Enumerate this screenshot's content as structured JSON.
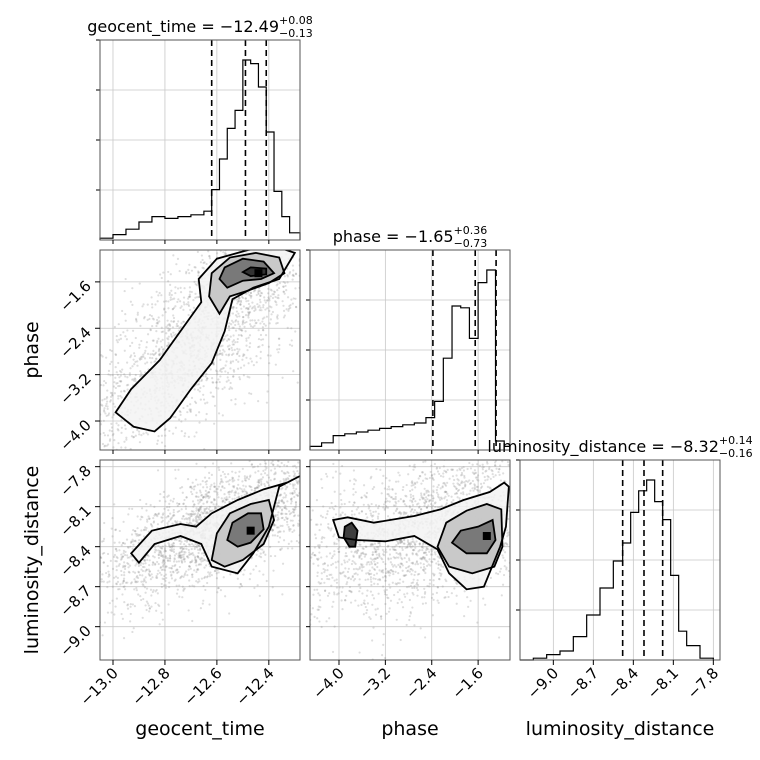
{
  "chart_data": {
    "type": "corner",
    "parameters": [
      {
        "name": "geocent_time",
        "xlabel": "geocent_time",
        "xlim": [
          -13.05,
          -12.28
        ],
        "xticks": [
          -13.0,
          -12.8,
          -12.6,
          -12.4
        ],
        "xtick_labels": [
          "−13.0",
          "−12.8",
          "−12.6",
          "−12.4"
        ]
      },
      {
        "name": "phase",
        "xlabel": "phase",
        "ylabel": "phase",
        "xlim": [
          -4.5,
          -1.05
        ],
        "xticks": [
          -4.0,
          -3.2,
          -2.4,
          -1.6
        ],
        "xtick_labels": [
          "−4.0",
          "−3.2",
          "−2.4",
          "−1.6"
        ]
      },
      {
        "name": "luminosity_distance",
        "xlabel": "luminosity_distance",
        "ylabel": "luminosity_distance",
        "xlim": [
          -9.25,
          -7.75
        ],
        "xticks": [
          -9.0,
          -8.7,
          -8.4,
          -8.1,
          -7.8
        ],
        "xtick_labels": [
          "−9.0",
          "−8.7",
          "−8.4",
          "−8.1",
          "−7.8"
        ]
      }
    ],
    "titles": [
      {
        "prefix": "geocent_time = −12.49",
        "sup": "+0.08",
        "sub": "−0.13"
      },
      {
        "prefix": "phase = −1.65",
        "sup": "+0.36",
        "sub": "−0.73"
      },
      {
        "prefix": "luminosity_distance = −8.32",
        "sup": "+0.14",
        "sub": "−0.16"
      }
    ],
    "quantiles": [
      [
        -12.62,
        -12.49,
        -12.41
      ],
      [
        -2.38,
        -1.65,
        -1.29
      ],
      [
        -8.48,
        -8.32,
        -8.18
      ]
    ],
    "histograms": [
      {
        "edges": [
          -13.05,
          -13.0,
          -12.95,
          -12.9,
          -12.85,
          -12.8,
          -12.75,
          -12.7,
          -12.65,
          -12.62,
          -12.59,
          -12.56,
          -12.53,
          -12.5,
          -12.47,
          -12.44,
          -12.41,
          -12.38,
          -12.35,
          -12.32,
          -12.28
        ],
        "counts": [
          0.01,
          0.03,
          0.06,
          0.1,
          0.13,
          0.12,
          0.13,
          0.14,
          0.16,
          0.28,
          0.45,
          0.62,
          0.72,
          1.0,
          0.98,
          0.85,
          0.6,
          0.27,
          0.13,
          0.04
        ]
      },
      {
        "edges": [
          -4.5,
          -4.3,
          -4.1,
          -3.9,
          -3.7,
          -3.5,
          -3.3,
          -3.1,
          -2.9,
          -2.7,
          -2.5,
          -2.35,
          -2.2,
          -2.05,
          -1.9,
          -1.75,
          -1.6,
          -1.45,
          -1.3,
          -1.15,
          -1.05
        ],
        "counts": [
          0.02,
          0.04,
          0.08,
          0.09,
          0.1,
          0.11,
          0.12,
          0.13,
          0.14,
          0.15,
          0.18,
          0.27,
          0.51,
          0.8,
          0.79,
          0.62,
          0.93,
          1.0,
          0.05,
          0.02
        ]
      },
      {
        "edges": [
          -9.25,
          -9.15,
          -9.05,
          -8.95,
          -8.85,
          -8.75,
          -8.65,
          -8.55,
          -8.48,
          -8.42,
          -8.36,
          -8.3,
          -8.24,
          -8.18,
          -8.12,
          -8.06,
          -8.0,
          -7.9,
          -7.8
        ],
        "counts": [
          0.0,
          0.01,
          0.03,
          0.05,
          0.13,
          0.25,
          0.4,
          0.55,
          0.65,
          0.82,
          0.94,
          1.0,
          0.88,
          0.78,
          0.47,
          0.16,
          0.08,
          0.01
        ]
      }
    ],
    "pairs": [
      {
        "x": 0,
        "y": 1,
        "corr": 0.8,
        "peak": [
          -12.44,
          -1.45
        ],
        "contours": [
          [
            [
              -12.84,
              -4.18
            ],
            [
              -12.78,
              -3.95
            ],
            [
              -12.7,
              -3.45
            ],
            [
              -12.62,
              -3.0
            ],
            [
              -12.57,
              -2.45
            ],
            [
              -12.54,
              -1.9
            ],
            [
              -12.46,
              -1.7
            ],
            [
              -12.36,
              -1.55
            ],
            [
              -12.3,
              -1.1
            ],
            [
              -12.38,
              -0.98
            ],
            [
              -12.48,
              -1.05
            ],
            [
              -12.6,
              -1.2
            ],
            [
              -12.67,
              -1.55
            ],
            [
              -12.66,
              -1.95
            ],
            [
              -12.74,
              -2.45
            ],
            [
              -12.82,
              -2.95
            ],
            [
              -12.93,
              -3.45
            ],
            [
              -12.99,
              -3.85
            ],
            [
              -12.92,
              -4.1
            ]
          ],
          [
            [
              -12.59,
              -2.15
            ],
            [
              -12.55,
              -1.85
            ],
            [
              -12.48,
              -1.75
            ],
            [
              -12.4,
              -1.62
            ],
            [
              -12.34,
              -1.45
            ],
            [
              -12.36,
              -1.18
            ],
            [
              -12.45,
              -1.1
            ],
            [
              -12.55,
              -1.18
            ],
            [
              -12.62,
              -1.45
            ],
            [
              -12.63,
              -1.85
            ]
          ],
          [
            [
              -12.56,
              -1.7
            ],
            [
              -12.5,
              -1.58
            ],
            [
              -12.43,
              -1.55
            ],
            [
              -12.38,
              -1.45
            ],
            [
              -12.42,
              -1.25
            ],
            [
              -12.5,
              -1.2
            ],
            [
              -12.57,
              -1.35
            ],
            [
              -12.59,
              -1.55
            ]
          ],
          [
            [
              -12.47,
              -1.5
            ],
            [
              -12.41,
              -1.47
            ],
            [
              -12.41,
              -1.37
            ],
            [
              -12.47,
              -1.35
            ],
            [
              -12.5,
              -1.43
            ]
          ]
        ]
      },
      {
        "x": 0,
        "y": 2,
        "corr": 0.7,
        "peak": [
          -12.47,
          -8.28
        ],
        "contours": [
          [
            [
              -12.93,
              -8.45
            ],
            [
              -12.85,
              -8.28
            ],
            [
              -12.74,
              -8.23
            ],
            [
              -12.68,
              -8.25
            ],
            [
              -12.62,
              -8.15
            ],
            [
              -12.52,
              -8.05
            ],
            [
              -12.42,
              -7.97
            ],
            [
              -12.33,
              -7.92
            ],
            [
              -12.28,
              -7.87
            ],
            [
              -12.36,
              -7.95
            ],
            [
              -12.4,
              -8.25
            ],
            [
              -12.46,
              -8.45
            ],
            [
              -12.52,
              -8.6
            ],
            [
              -12.62,
              -8.55
            ],
            [
              -12.66,
              -8.38
            ],
            [
              -12.74,
              -8.32
            ],
            [
              -12.84,
              -8.38
            ],
            [
              -12.9,
              -8.52
            ]
          ],
          [
            [
              -12.62,
              -8.5
            ],
            [
              -12.6,
              -8.3
            ],
            [
              -12.55,
              -8.15
            ],
            [
              -12.47,
              -8.08
            ],
            [
              -12.4,
              -8.05
            ],
            [
              -12.38,
              -8.2
            ],
            [
              -12.42,
              -8.38
            ],
            [
              -12.5,
              -8.5
            ],
            [
              -12.57,
              -8.55
            ]
          ],
          [
            [
              -12.56,
              -8.35
            ],
            [
              -12.54,
              -8.22
            ],
            [
              -12.48,
              -8.15
            ],
            [
              -12.43,
              -8.15
            ],
            [
              -12.42,
              -8.27
            ],
            [
              -12.47,
              -8.37
            ],
            [
              -12.52,
              -8.4
            ]
          ]
        ]
      },
      {
        "x": 1,
        "y": 2,
        "corr": 0.45,
        "peak": [
          -1.45,
          -8.32
        ],
        "contours": [
          [
            [
              -4.1,
              -8.2
            ],
            [
              -3.85,
              -8.18
            ],
            [
              -3.4,
              -8.22
            ],
            [
              -2.7,
              -8.17
            ],
            [
              -2.25,
              -8.12
            ],
            [
              -1.85,
              -8.05
            ],
            [
              -1.4,
              -7.99
            ],
            [
              -1.15,
              -7.92
            ],
            [
              -1.07,
              -7.95
            ],
            [
              -1.12,
              -8.25
            ],
            [
              -1.22,
              -8.4
            ],
            [
              -1.5,
              -8.7
            ],
            [
              -1.8,
              -8.72
            ],
            [
              -2.1,
              -8.6
            ],
            [
              -2.3,
              -8.42
            ],
            [
              -2.7,
              -8.32
            ],
            [
              -3.2,
              -8.36
            ],
            [
              -3.7,
              -8.35
            ],
            [
              -4.0,
              -8.33
            ]
          ],
          [
            [
              -2.3,
              -8.4
            ],
            [
              -2.15,
              -8.22
            ],
            [
              -1.8,
              -8.13
            ],
            [
              -1.45,
              -8.08
            ],
            [
              -1.2,
              -8.12
            ],
            [
              -1.18,
              -8.4
            ],
            [
              -1.32,
              -8.55
            ],
            [
              -1.7,
              -8.6
            ],
            [
              -2.1,
              -8.55
            ]
          ],
          [
            [
              -2.05,
              -8.37
            ],
            [
              -1.9,
              -8.28
            ],
            [
              -1.6,
              -8.25
            ],
            [
              -1.35,
              -8.2
            ],
            [
              -1.3,
              -8.35
            ],
            [
              -1.45,
              -8.45
            ],
            [
              -1.8,
              -8.45
            ]
          ],
          [
            [
              -3.9,
              -8.25
            ],
            [
              -3.78,
              -8.22
            ],
            [
              -3.68,
              -8.28
            ],
            [
              -3.72,
              -8.4
            ],
            [
              -3.82,
              -8.4
            ],
            [
              -3.92,
              -8.33
            ]
          ]
        ]
      }
    ]
  }
}
